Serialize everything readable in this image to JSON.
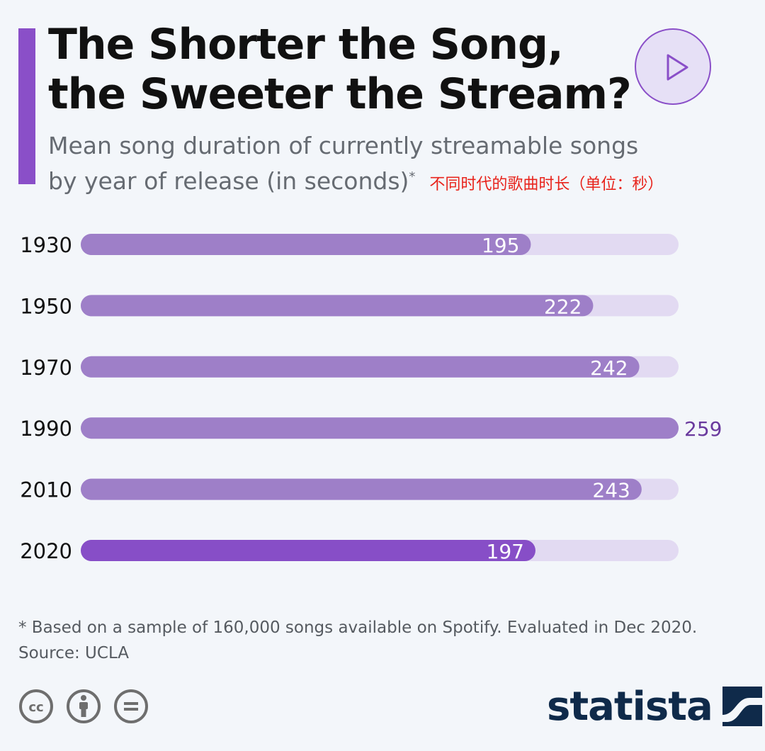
{
  "title": {
    "line1": "The Shorter the Song,",
    "line2": "the Sweeter the Stream?"
  },
  "subtitle": {
    "line1": "Mean song duration of currently streamable songs",
    "line2": "by year of release (in seconds)",
    "asterisk": "*",
    "cn_note": "不同时代的歌曲时长（单位：秒）"
  },
  "colors": {
    "bar": "#9e7fc8",
    "bar_highlight": "#874ec7",
    "track": "#e2daf2",
    "label_inside": "#ffffff",
    "label_outside": "#6a3a9e",
    "category_text": "#111111"
  },
  "chart_data": {
    "type": "bar",
    "orientation": "horizontal",
    "categories": [
      "1930",
      "1950",
      "1970",
      "1990",
      "2010",
      "2020"
    ],
    "values": [
      195,
      222,
      242,
      259,
      243,
      197
    ],
    "highlight": "2020",
    "xlim": [
      0,
      259
    ],
    "grid": false,
    "legend": "none"
  },
  "footnote": {
    "line1": "* Based on a sample of 160,000 songs available on Spotify. Evaluated in Dec 2020.",
    "line2": "Source: UCLA"
  },
  "license_icons": [
    "cc-icon",
    "attribution-icon",
    "no-derivatives-icon"
  ],
  "brand": {
    "name": "statista",
    "icon": "statista-logo-icon"
  }
}
